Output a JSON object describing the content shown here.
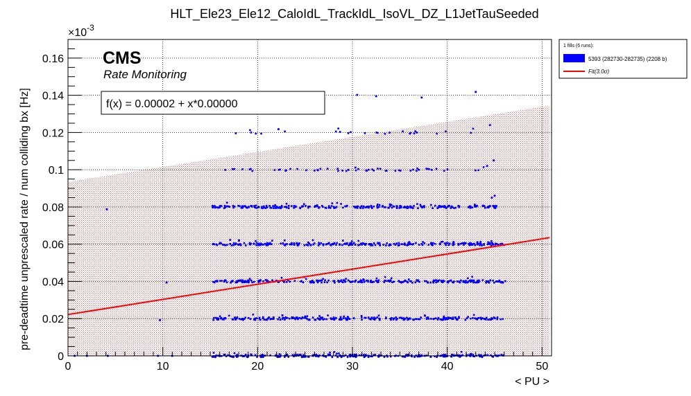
{
  "chart_data": {
    "type": "scatter",
    "title": "HLT_Ele23_Ele12_CaloIdL_TrackIdL_IsoVL_DZ_L1JetTauSeeded",
    "xlabel": "< PU >",
    "ylabel": "pre-deadtime unprescaled rate / num colliding bx [Hz]",
    "y_exponent_label": "×10",
    "y_exponent_power": "-3",
    "xlim": [
      0,
      51
    ],
    "ylim": [
      0,
      0.17
    ],
    "x_ticks": [
      0,
      10,
      20,
      30,
      40,
      50
    ],
    "x_tick_labels": [
      "0",
      "10",
      "20",
      "30",
      "40",
      "50"
    ],
    "y_ticks": [
      0,
      0.02,
      0.04,
      0.06,
      0.08,
      0.1,
      0.12,
      0.14,
      0.16
    ],
    "y_tick_labels": [
      "0",
      "0.02",
      "0.04",
      "0.06",
      "0.08",
      "0.1",
      "0.12",
      "0.14",
      "0.16"
    ],
    "grid": true,
    "cms_label": "CMS",
    "cms_sublabel": "Rate Monitoring",
    "fit_text": "f(x) = 0.00002 + x*0.00000",
    "legend": {
      "placement": "top-right outside",
      "header": "1 fills (6 runs):",
      "entries": [
        {
          "label": "5393 (282730-282735) (2208 b)",
          "color": "#0000ff",
          "kind": "box"
        },
        {
          "label": "Fit(3.0σ)",
          "color": "#ff0000",
          "kind": "line"
        }
      ]
    },
    "series": [
      {
        "name": "5393 (282730-282735) (2208 b)",
        "color": "#0000ff",
        "bands": [
          {
            "level": 0.0,
            "x": [
              15.2,
              46.0
            ]
          },
          {
            "level": 0.02,
            "x": [
              15.2,
              46.2
            ]
          },
          {
            "level": 0.04,
            "x": [
              15.2,
              46.2
            ]
          },
          {
            "level": 0.06,
            "x": [
              15.2,
              46.0
            ]
          },
          {
            "level": 0.08,
            "x": [
              15.2,
              45.2
            ]
          },
          {
            "level": 0.1,
            "x": [
              16.5,
              45.0
            ]
          },
          {
            "level": 0.12,
            "x": [
              17.5,
              44.0
            ]
          }
        ],
        "isolated_points": [
          [
            0.7,
            0.0
          ],
          [
            2.0,
            0.0
          ],
          [
            4.2,
            0.0
          ],
          [
            9.5,
            0.0
          ],
          [
            11.0,
            0.0
          ],
          [
            4.1,
            0.0787
          ],
          [
            10.4,
            0.0394
          ],
          [
            9.7,
            0.0192
          ],
          [
            30.5,
            0.1402
          ],
          [
            32.5,
            0.1395
          ],
          [
            37.3,
            0.1388
          ],
          [
            43.0,
            0.1418
          ],
          [
            22.2,
            0.1218
          ],
          [
            44.5,
            0.124
          ],
          [
            44.9,
            0.105
          ],
          [
            44.2,
            0.102
          ],
          [
            44.7,
            0.085
          ],
          [
            45.0,
            0.086
          ],
          [
            24.0,
            0.08
          ],
          [
            42.9,
            0.0812
          ]
        ]
      },
      {
        "name": "Fit(3.0σ)",
        "color": "#ff0000",
        "type": "line",
        "x": [
          0,
          50.8
        ],
        "y": [
          0.0222,
          0.0635
        ]
      }
    ],
    "sigma_band": {
      "color": "#c49a9a",
      "lower": [
        [
          0,
          0.0
        ],
        [
          50.8,
          0.0
        ]
      ],
      "upper": [
        [
          0,
          0.0935
        ],
        [
          50.8,
          0.1345
        ]
      ]
    }
  }
}
